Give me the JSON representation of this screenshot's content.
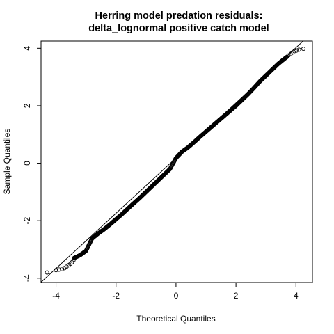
{
  "chart_data": {
    "type": "scatter",
    "title": [
      "Herring model predation residuals:",
      "delta_lognormal positive catch model"
    ],
    "xlabel": "Theoretical Quantiles",
    "ylabel": "Sample Quantiles",
    "xlim": [
      -4.5,
      4.55
    ],
    "ylim": [
      -4.15,
      4.25
    ],
    "x_ticks": [
      -4,
      -2,
      0,
      2,
      4
    ],
    "y_ticks": [
      -4,
      -2,
      0,
      2,
      4
    ],
    "reference_line": {
      "intercept": 0.18,
      "slope": 0.96
    },
    "tail_points": {
      "x": [
        -4.3,
        -4.0,
        -3.9,
        -3.8,
        -3.72,
        -3.65,
        -3.58,
        -3.52,
        -3.47,
        -3.42,
        3.75,
        3.82,
        3.88,
        3.95,
        4.02,
        4.1,
        4.25
      ],
      "y": [
        -3.8,
        -3.72,
        -3.7,
        -3.68,
        -3.65,
        -3.6,
        -3.55,
        -3.5,
        -3.45,
        -3.38,
        3.75,
        3.8,
        3.85,
        3.9,
        3.92,
        3.95,
        3.98
      ]
    },
    "body_curve": {
      "x": [
        -3.4,
        -3.2,
        -3.0,
        -2.8,
        -2.6,
        -2.4,
        -2.2,
        -2.0,
        -1.8,
        -1.5,
        -1.2,
        -1.0,
        -0.8,
        -0.6,
        -0.4,
        -0.2,
        0,
        0.2,
        0.4,
        0.6,
        0.8,
        1.0,
        1.2,
        1.5,
        1.8,
        2.0,
        2.2,
        2.4,
        2.6,
        2.8,
        3.0,
        3.2,
        3.4,
        3.6,
        3.7
      ],
      "y": [
        -3.3,
        -3.2,
        -3.05,
        -2.62,
        -2.45,
        -2.3,
        -2.13,
        -1.95,
        -1.77,
        -1.48,
        -1.2,
        -1.0,
        -0.8,
        -0.6,
        -0.4,
        -0.2,
        0.18,
        0.4,
        0.55,
        0.73,
        0.92,
        1.1,
        1.28,
        1.55,
        1.82,
        2.0,
        2.2,
        2.4,
        2.62,
        2.85,
        3.05,
        3.25,
        3.45,
        3.62,
        3.7
      ]
    },
    "grid": false,
    "legend": "none",
    "marker": "open-circle",
    "color": "#000000"
  }
}
